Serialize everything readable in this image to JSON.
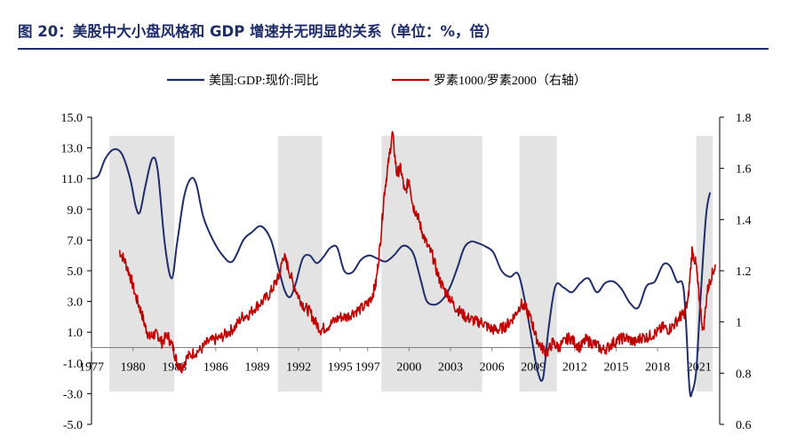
{
  "figure_title": "图 20：美股中大小盘风格和 GDP 增速并无明显的关系（单位：%，倍）",
  "chart_data": {
    "type": "line",
    "title": "美股中大小盘风格和 GDP 增速并无明显的关系",
    "units": "%，倍",
    "left_axis": {
      "ylim": [
        -5,
        15
      ],
      "ticks": [
        "15.0",
        "13.0",
        "11.0",
        "9.0",
        "7.0",
        "5.0",
        "3.0",
        "1.0",
        "-1.0",
        "-3.0",
        "-5.0"
      ]
    },
    "right_axis": {
      "ylim": [
        0.6,
        1.8
      ],
      "ticks": [
        "1.8",
        "1.6",
        "1.4",
        "1.2",
        "1",
        "0.8",
        "0.6"
      ]
    },
    "x_ticks": [
      "1977",
      "1980",
      "1983",
      "1986",
      "1989",
      "1992",
      "1995",
      "1997",
      "2000",
      "2003",
      "2006",
      "2009",
      "2012",
      "2015",
      "2018",
      "2021"
    ],
    "xlim": [
      1977,
      2022.5
    ],
    "legend": [
      "美国:GDP:现价:同比",
      "罗素1000/罗素2000（右轴）"
    ],
    "colors": {
      "gdp": "#1f2d6b",
      "ratio": "#c00000",
      "recession": "#e3e3e3",
      "title": "#1f2d6b"
    },
    "recession_periods": [
      [
        1978.3,
        1983.0
      ],
      [
        1990.5,
        1993.7
      ],
      [
        1998.0,
        2005.3
      ],
      [
        2008.0,
        2010.7
      ],
      [
        2020.8,
        2022.0
      ]
    ],
    "series": [
      {
        "name": "美国:GDP:现价:同比",
        "axis": "left",
        "x": [
          1977.0,
          1977.5,
          1978.0,
          1978.6,
          1979.2,
          1979.8,
          1980.2,
          1980.5,
          1980.9,
          1981.4,
          1981.8,
          1982.3,
          1982.8,
          1983.2,
          1983.7,
          1984.2,
          1984.6,
          1985.1,
          1985.8,
          1986.5,
          1987.2,
          1988.0,
          1988.6,
          1989.3,
          1990.0,
          1990.5,
          1991.0,
          1991.4,
          1991.8,
          1992.3,
          1992.8,
          1993.3,
          1993.8,
          1994.3,
          1994.8,
          1995.3,
          1995.9,
          1996.5,
          1997.1,
          1997.7,
          1998.3,
          1998.9,
          1999.5,
          2000.0,
          2000.4,
          2000.9,
          2001.3,
          2001.9,
          2002.5,
          2003.0,
          2003.5,
          2004.0,
          2004.5,
          2005.0,
          2005.5,
          2006.1,
          2006.7,
          2007.3,
          2007.9,
          2008.4,
          2008.9,
          2009.3,
          2009.7,
          2010.1,
          2010.6,
          2011.2,
          2011.8,
          2012.4,
          2013.0,
          2013.6,
          2014.2,
          2014.8,
          2015.4,
          2016.0,
          2016.6,
          2017.2,
          2017.8,
          2018.4,
          2018.9,
          2019.4,
          2019.9,
          2020.3,
          2020.5,
          2020.8,
          2021.1,
          2021.5,
          2021.8
        ],
        "values": [
          11.0,
          11.2,
          12.3,
          12.9,
          12.6,
          11.0,
          9.2,
          8.8,
          10.5,
          12.3,
          11.5,
          6.8,
          4.5,
          6.8,
          9.8,
          11.0,
          10.6,
          8.5,
          7.0,
          6.0,
          5.6,
          7.0,
          7.5,
          7.9,
          7.0,
          5.3,
          3.7,
          3.3,
          4.2,
          5.8,
          6.0,
          5.5,
          5.9,
          6.5,
          6.5,
          5.0,
          4.9,
          5.7,
          6.0,
          5.8,
          5.6,
          6.0,
          6.6,
          6.5,
          5.9,
          4.2,
          3.0,
          2.8,
          3.2,
          4.0,
          5.2,
          6.5,
          6.9,
          6.8,
          6.6,
          6.2,
          5.0,
          4.6,
          4.8,
          3.0,
          0.5,
          -1.5,
          -2.0,
          1.2,
          4.0,
          3.9,
          3.6,
          4.2,
          4.5,
          3.6,
          4.2,
          4.3,
          3.8,
          2.9,
          2.6,
          4.0,
          4.3,
          5.4,
          5.3,
          4.3,
          3.7,
          -2.5,
          -2.9,
          -1.5,
          3.0,
          8.5,
          10.1
        ]
      },
      {
        "name": "罗素1000/罗素2000（右轴）",
        "axis": "right",
        "x": [
          1979.0,
          1979.4,
          1979.8,
          1980.2,
          1980.6,
          1980.9,
          1981.2,
          1981.5,
          1981.8,
          1982.1,
          1982.5,
          1982.9,
          1983.2,
          1983.5,
          1983.9,
          1984.4,
          1984.9,
          1985.4,
          1985.9,
          1986.4,
          1986.9,
          1987.4,
          1987.9,
          1988.4,
          1988.9,
          1989.4,
          1989.9,
          1990.3,
          1990.6,
          1990.9,
          1991.2,
          1991.6,
          1992.0,
          1992.4,
          1992.8,
          1993.2,
          1993.6,
          1994.0,
          1994.5,
          1995.0,
          1995.5,
          1996.0,
          1996.5,
          1997.0,
          1997.3,
          1997.6,
          1997.9,
          1998.2,
          1998.5,
          1998.8,
          1999.1,
          1999.4,
          1999.7,
          2000.0,
          2000.3,
          2000.6,
          2000.9,
          2001.3,
          2001.7,
          2002.1,
          2002.5,
          2002.9,
          2003.3,
          2003.7,
          2004.1,
          2004.5,
          2004.9,
          2005.3,
          2005.7,
          2006.1,
          2006.5,
          2006.9,
          2007.3,
          2007.7,
          2008.1,
          2008.5,
          2008.9,
          2009.2,
          2009.6,
          2010.0,
          2010.4,
          2010.8,
          2011.2,
          2011.6,
          2012.0,
          2012.4,
          2012.8,
          2013.2,
          2013.6,
          2014.0,
          2014.4,
          2014.8,
          2015.2,
          2015.6,
          2016.0,
          2016.4,
          2016.8,
          2017.2,
          2017.6,
          2018.0,
          2018.4,
          2018.8,
          2019.2,
          2019.6,
          2019.9,
          2020.2,
          2020.5,
          2020.8,
          2021.0,
          2021.3,
          2021.6,
          2021.9,
          2022.2
        ],
        "values": [
          1.28,
          1.24,
          1.18,
          1.1,
          1.04,
          0.98,
          0.94,
          0.95,
          0.95,
          0.92,
          0.95,
          0.9,
          0.84,
          0.82,
          0.86,
          0.88,
          0.89,
          0.92,
          0.93,
          0.94,
          0.96,
          0.98,
          1.02,
          1.03,
          1.06,
          1.08,
          1.11,
          1.15,
          1.18,
          1.26,
          1.22,
          1.15,
          1.1,
          1.06,
          1.04,
          1.0,
          0.97,
          0.98,
          1.0,
          1.02,
          1.02,
          1.04,
          1.05,
          1.07,
          1.1,
          1.15,
          1.3,
          1.5,
          1.62,
          1.74,
          1.58,
          1.6,
          1.5,
          1.56,
          1.45,
          1.42,
          1.36,
          1.3,
          1.26,
          1.18,
          1.13,
          1.1,
          1.06,
          1.04,
          1.02,
          1.01,
          1.0,
          1.0,
          0.98,
          0.97,
          0.97,
          0.98,
          1.0,
          1.03,
          1.07,
          1.05,
          1.0,
          0.94,
          0.9,
          0.88,
          0.92,
          0.9,
          0.92,
          0.94,
          0.92,
          0.9,
          0.93,
          0.92,
          0.91,
          0.89,
          0.9,
          0.92,
          0.93,
          0.94,
          0.93,
          0.92,
          0.94,
          0.94,
          0.95,
          0.96,
          0.98,
          0.97,
          0.99,
          1.02,
          1.03,
          1.08,
          1.28,
          1.22,
          1.1,
          0.96,
          1.12,
          1.18,
          1.22
        ]
      }
    ]
  }
}
